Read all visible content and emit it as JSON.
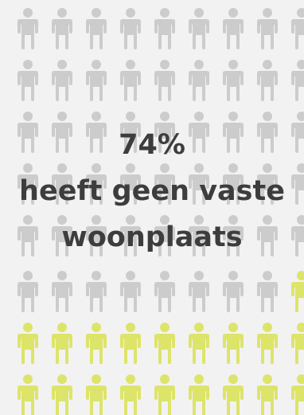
{
  "headline": {
    "percentage": "74%",
    "line1": "heeft geen vaste",
    "line2": "woonplaats"
  },
  "colors": {
    "background": "#f2f2f2",
    "person_grey": "#cccccc",
    "person_highlight": "#dde46a",
    "text": "#3d3d3d"
  },
  "icon": "person-icon"
}
